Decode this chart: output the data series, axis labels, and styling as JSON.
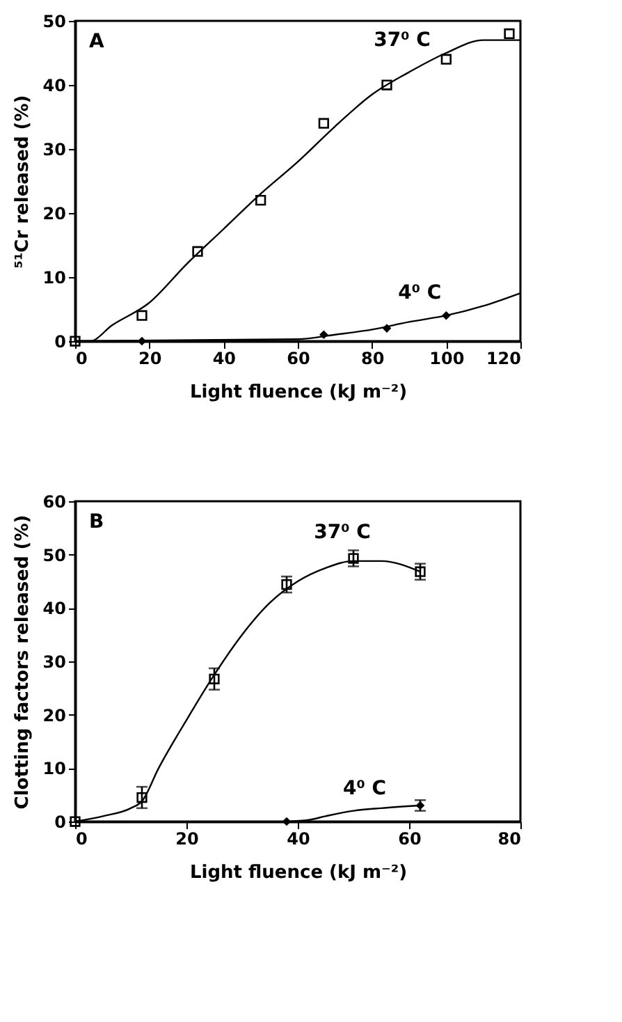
{
  "chart_data": [
    {
      "type": "scatter",
      "title": "A",
      "xlabel": "Light fluence (kJ m⁻²)",
      "ylabel": "⁵¹Cr released (%)",
      "xlim": [
        0,
        120
      ],
      "xticks": [
        0,
        20,
        40,
        60,
        80,
        100,
        120
      ],
      "ylim": [
        0,
        50
      ],
      "yticks": [
        0,
        10,
        20,
        30,
        40,
        50
      ],
      "grid": false,
      "legend": false,
      "series": [
        {
          "type": "line",
          "color": "#000000",
          "x": [
            0,
            4,
            10,
            20,
            30,
            40,
            50,
            60,
            70,
            80,
            90,
            100,
            110,
            120
          ],
          "values": [
            0,
            0,
            2.5,
            6,
            12,
            17.5,
            23,
            28,
            33.5,
            38.5,
            42,
            45,
            47,
            47
          ]
        },
        {
          "type": "line",
          "color": "#000000",
          "x": [
            0,
            60,
            70,
            80,
            90,
            100,
            110,
            120
          ],
          "values": [
            0,
            0.3,
            1,
            1.8,
            3,
            4,
            5.5,
            7.5
          ]
        },
        {
          "name": "37⁰ C",
          "type": "scatter",
          "marker": "square",
          "color": "#000000",
          "x": [
            0,
            18,
            33,
            50,
            67,
            84,
            100,
            117
          ],
          "values": [
            0,
            4,
            14,
            22,
            34,
            40,
            44,
            48
          ]
        },
        {
          "name": "4⁰ C",
          "type": "scatter",
          "marker": "diamond",
          "color": "#000000",
          "x": [
            18,
            67,
            84,
            100
          ],
          "values": [
            0,
            1,
            2,
            4
          ]
        }
      ]
    },
    {
      "type": "scatter",
      "title": "B",
      "xlabel": "Light fluence (kJ m⁻²)",
      "ylabel": "Clotting factors released (%)",
      "xlim": [
        0,
        80
      ],
      "xticks": [
        0,
        20,
        40,
        60,
        80
      ],
      "ylim": [
        0,
        60
      ],
      "yticks": [
        0,
        10,
        20,
        30,
        40,
        50,
        60
      ],
      "grid": false,
      "legend": false,
      "series": [
        {
          "type": "line",
          "color": "#000000",
          "x": [
            0,
            5,
            10,
            12,
            15,
            20,
            25,
            30,
            35,
            40,
            45,
            50,
            55,
            62
          ],
          "values": [
            0,
            1,
            2.5,
            3.8,
            10,
            19,
            27.5,
            35,
            41,
            45,
            47.5,
            48.8,
            48.8,
            46.8
          ]
        },
        {
          "type": "line",
          "color": "#000000",
          "x": [
            38,
            42,
            45,
            50,
            55,
            62
          ],
          "values": [
            0,
            0.3,
            1,
            2,
            2.5,
            3
          ]
        },
        {
          "name": "37⁰ C",
          "type": "scatter",
          "marker": "square",
          "color": "#000000",
          "x": [
            0,
            12,
            25,
            38,
            50,
            62
          ],
          "values": [
            0,
            4.5,
            26.7,
            44.4,
            49.3,
            46.8
          ],
          "errors": [
            null,
            2,
            2,
            1.5,
            1.5,
            1.5
          ]
        },
        {
          "name": "4⁰ C",
          "type": "scatter",
          "marker": "diamond",
          "color": "#000000",
          "x": [
            38,
            62
          ],
          "values": [
            0,
            3
          ],
          "errors": [
            null,
            1
          ]
        }
      ]
    }
  ]
}
